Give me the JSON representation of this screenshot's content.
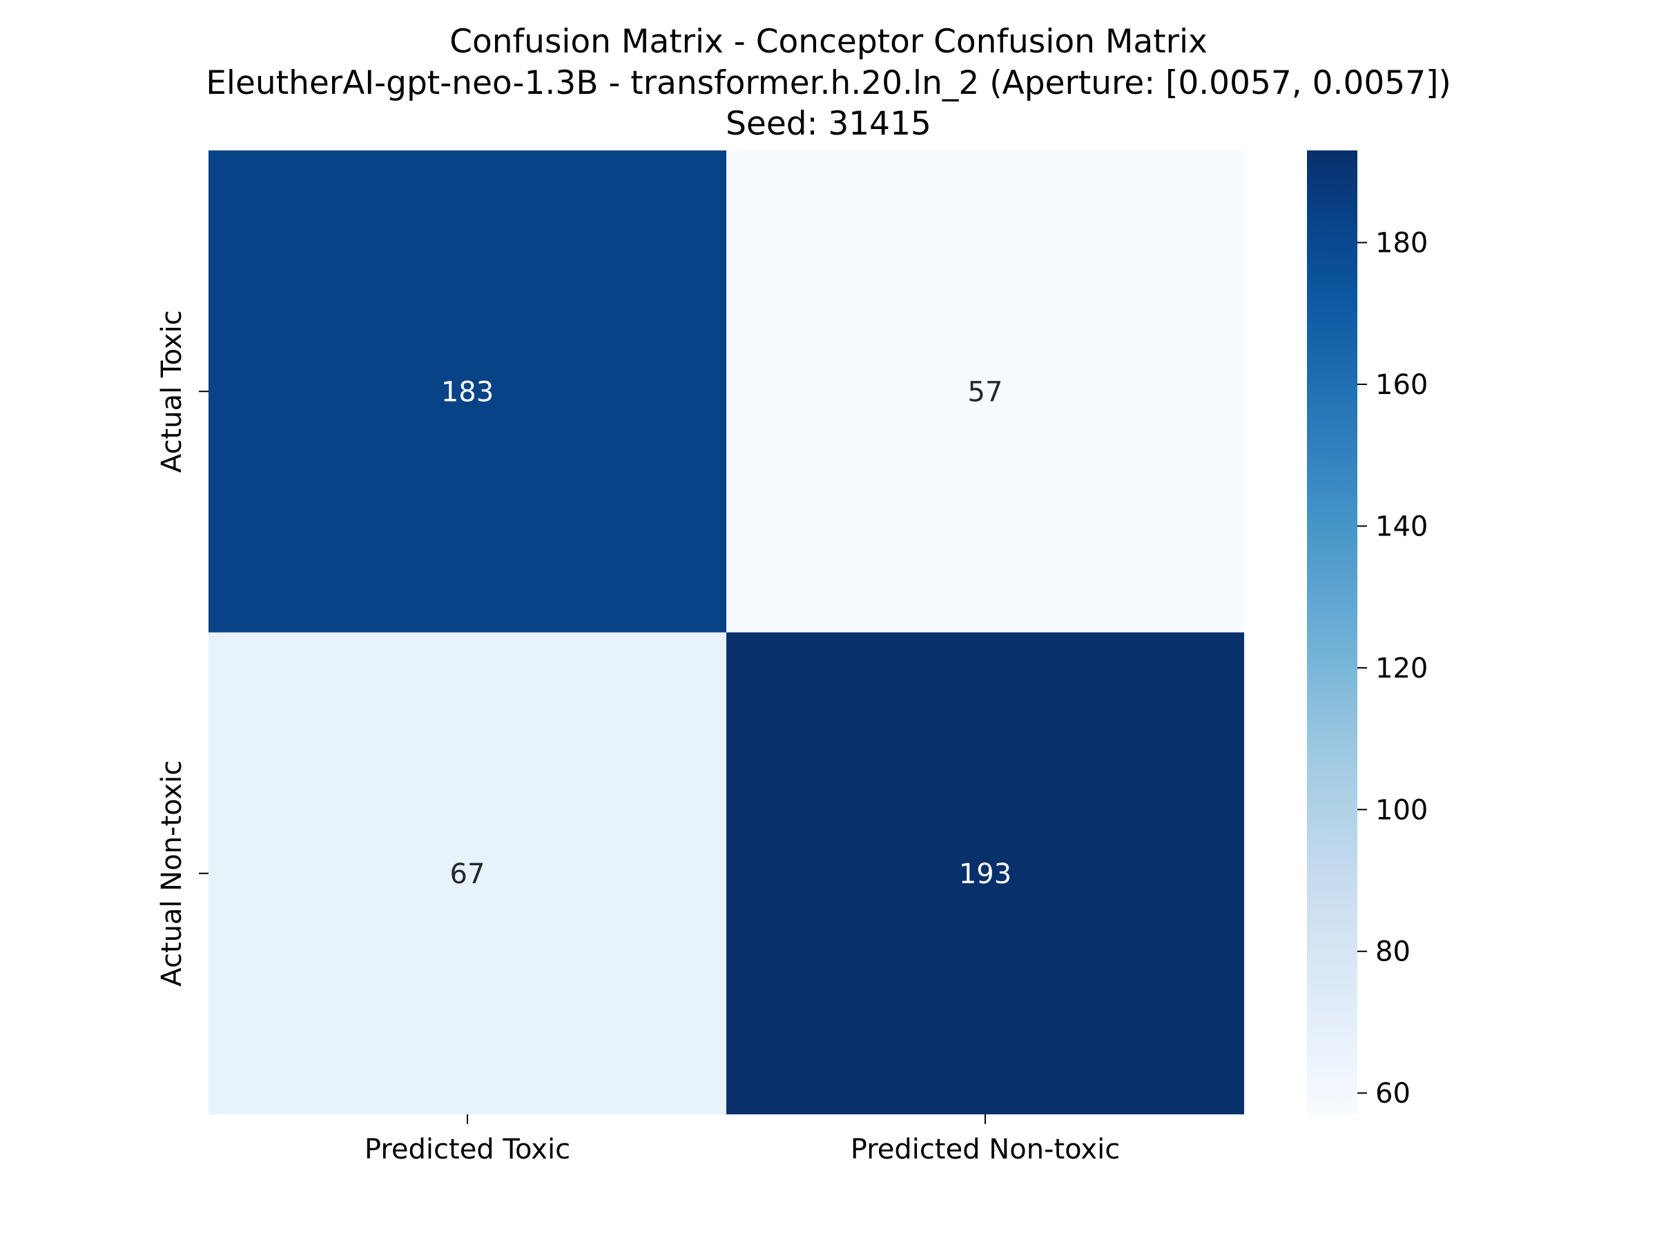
{
  "chart_data": {
    "type": "heatmap",
    "title_lines": [
      "Confusion Matrix - Conceptor Confusion Matrix",
      "EleutherAI-gpt-neo-1.3B - transformer.h.20.ln_2 (Aperture: [0.0057, 0.0057])",
      "Seed: 31415"
    ],
    "x_categories": [
      "Predicted Toxic",
      "Predicted Non-toxic"
    ],
    "y_categories": [
      "Actual Toxic",
      "Actual Non-toxic"
    ],
    "matrix": [
      [
        183,
        57
      ],
      [
        67,
        193
      ]
    ],
    "colormap": "Blues",
    "color_range": [
      57,
      193
    ],
    "colorbar_ticks": [
      60,
      80,
      100,
      120,
      140,
      160,
      180
    ],
    "xlabel": "",
    "ylabel": "",
    "grid": false
  }
}
